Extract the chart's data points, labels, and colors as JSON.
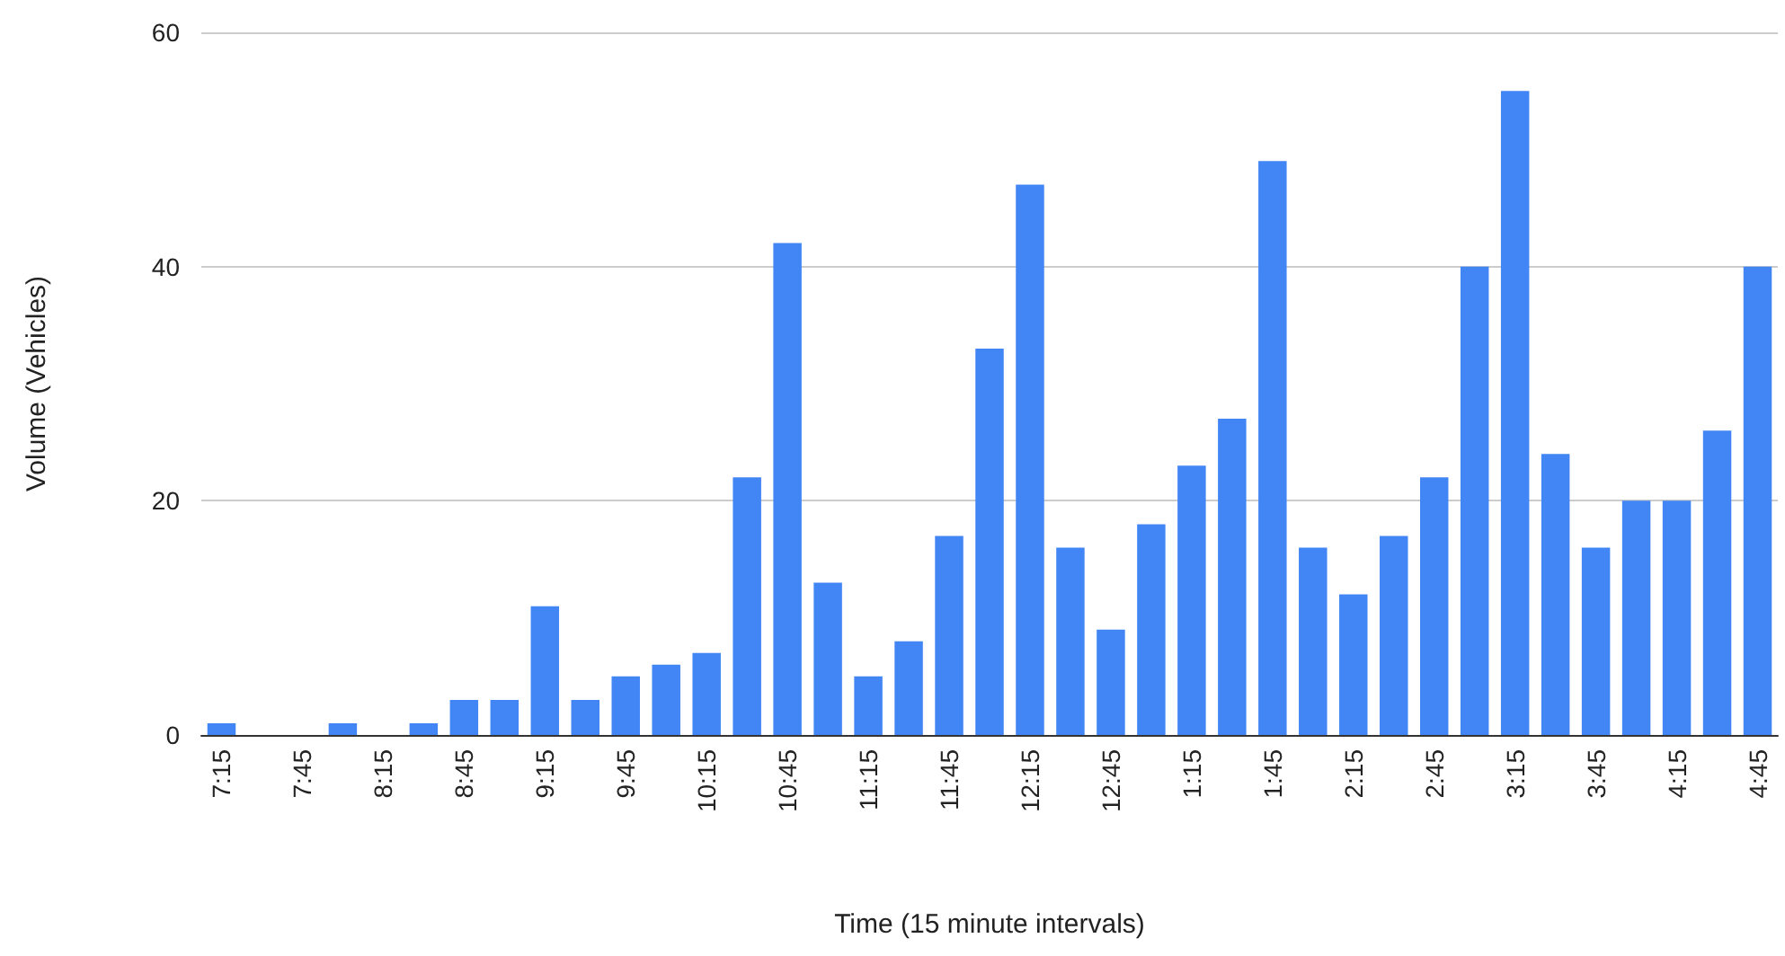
{
  "chart_data": {
    "type": "bar",
    "xlabel": "Time (15 minute intervals)",
    "ylabel": "Volume (Vehicles)",
    "categories": [
      "7:15",
      null,
      "7:45",
      null,
      "8:15",
      null,
      "8:45",
      null,
      "9:15",
      null,
      "9:45",
      null,
      "10:15",
      null,
      "10:45",
      null,
      "11:15",
      null,
      "11:45",
      null,
      "12:15",
      null,
      "12:45",
      null,
      "1:15",
      null,
      "1:45",
      null,
      "2:15",
      null,
      "2:45",
      null,
      "3:15",
      null,
      "3:45",
      null,
      "4:15",
      null,
      "4:45"
    ],
    "series": [
      {
        "color": "#4285f4",
        "values": [
          1,
          0,
          0,
          1,
          0,
          1,
          3,
          3,
          11,
          3,
          5,
          6,
          7,
          22,
          42,
          13,
          5,
          8,
          17,
          33,
          47,
          16,
          9,
          18,
          23,
          27,
          49,
          16,
          12,
          17,
          22,
          40,
          55,
          24,
          16,
          20,
          20,
          26,
          40
        ]
      }
    ],
    "ylim": [
      0,
      60
    ],
    "yticks": [
      0,
      20,
      40,
      60
    ],
    "grid": "y"
  }
}
